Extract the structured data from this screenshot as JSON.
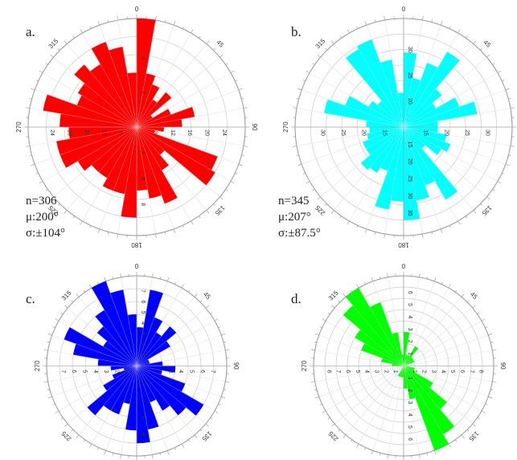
{
  "chart_data": [
    {
      "type": "rose",
      "panel_label": "a.",
      "color": "#ff0000",
      "bin_width_deg": 10,
      "stats": {
        "n": "n=306",
        "mean": "μ:200°",
        "sigma": "σ:±104°"
      },
      "rlim": [
        0,
        24
      ],
      "rings": [
        4,
        8,
        12,
        16,
        20,
        24
      ],
      "axis_tick_labels": {
        "north": [
          "2",
          "4"
        ],
        "south": [
          "4",
          "8",
          "8"
        ],
        "east": [
          "8",
          "12",
          "16",
          "20",
          "24"
        ],
        "west": [
          "8",
          "12",
          "16",
          "20",
          "24"
        ]
      },
      "angle_labels": [
        "0",
        "45",
        "90",
        "135",
        "180",
        "225",
        "270",
        "315"
      ],
      "values": [
        24,
        12,
        10,
        7,
        10,
        4,
        8,
        13,
        10,
        6,
        4,
        19,
        20,
        8,
        11,
        18,
        16,
        14,
        20,
        15,
        15,
        13,
        13,
        15,
        18,
        18,
        15,
        17,
        21,
        14,
        15,
        18,
        16,
        20,
        18,
        12
      ]
    },
    {
      "type": "rose",
      "panel_label": "b.",
      "color": "#00ffff",
      "bin_width_deg": 10,
      "stats": {
        "n": "n=345",
        "mean": "μ:207°",
        "sigma": "σ:±87.5°"
      },
      "rlim": [
        0,
        35
      ],
      "rings": [
        5,
        10,
        15,
        20,
        25,
        30,
        35
      ],
      "axis_tick_labels": {
        "north": [
          "20",
          "25",
          "30"
        ],
        "south": [
          "15",
          "20",
          "25",
          "30",
          "35"
        ],
        "east": [
          "15",
          "20",
          "25",
          "30"
        ],
        "west": [
          "15",
          "20",
          "25",
          "30"
        ]
      },
      "angle_labels": [
        "0",
        "45",
        "90",
        "135",
        "180",
        "225",
        "270",
        "315"
      ],
      "values": [
        24,
        16,
        22,
        28,
        16,
        12,
        19,
        24,
        11,
        11,
        14,
        16,
        14,
        9,
        27,
        20,
        24,
        30,
        24,
        27,
        15,
        17,
        18,
        14,
        14,
        12,
        11,
        12,
        26,
        20,
        13,
        11,
        29,
        30,
        22,
        11
      ]
    },
    {
      "type": "rose",
      "panel_label": "c.",
      "color": "#0000ff",
      "bin_width_deg": 10,
      "stats": {},
      "rlim": [
        0,
        7
      ],
      "rings": [
        1,
        2,
        3,
        4,
        5,
        6,
        7
      ],
      "axis_tick_labels": {
        "north": [
          "1",
          "2",
          "3",
          "4",
          "5",
          "6",
          "7"
        ],
        "south": [
          "2",
          "4",
          "6",
          "8"
        ],
        "east": [
          "1",
          "2",
          "3",
          "4",
          "5",
          "6",
          "7"
        ],
        "west": [
          "1",
          "2",
          "3",
          "4",
          "5",
          "6",
          "7"
        ]
      },
      "angle_labels": [
        "0",
        "45",
        "90",
        "135",
        "180",
        "225",
        "270",
        "315"
      ],
      "values": [
        3,
        6,
        4,
        3,
        4,
        3,
        1,
        1,
        2,
        3,
        2,
        4,
        6,
        5,
        4,
        3,
        5,
        6,
        5,
        3,
        4,
        4,
        5,
        3,
        2,
        1,
        2,
        3,
        5,
        6,
        3,
        4,
        5,
        7,
        6,
        4
      ]
    },
    {
      "type": "rose",
      "panel_label": "d.",
      "color": "#00ff00",
      "bin_width_deg": 10,
      "stats": {},
      "rlim": [
        0,
        8
      ],
      "rings": [
        1,
        2,
        3,
        4,
        5,
        6,
        7,
        8
      ],
      "axis_tick_labels": {
        "north": [
          "1",
          "2",
          "3",
          "4",
          "5",
          "6"
        ],
        "south": [
          "1",
          "2",
          "3",
          "4",
          "5",
          "6"
        ],
        "east": [
          "1",
          "2",
          "3",
          "4",
          "5",
          "6",
          "7",
          "8"
        ],
        "west": [
          "1",
          "2",
          "3",
          "4",
          "5",
          "6",
          "7",
          "8"
        ]
      },
      "angle_labels": [
        "0",
        "45",
        "90",
        "135",
        "180",
        "225",
        "270",
        "315"
      ],
      "values": [
        3,
        1,
        1,
        2,
        1,
        1,
        1,
        0,
        0,
        0,
        1,
        1,
        3,
        5,
        7,
        8,
        3,
        2,
        1,
        1,
        1,
        0,
        0,
        0,
        0,
        0,
        0,
        1,
        2,
        4,
        5,
        7,
        8,
        6,
        3,
        1
      ]
    }
  ]
}
